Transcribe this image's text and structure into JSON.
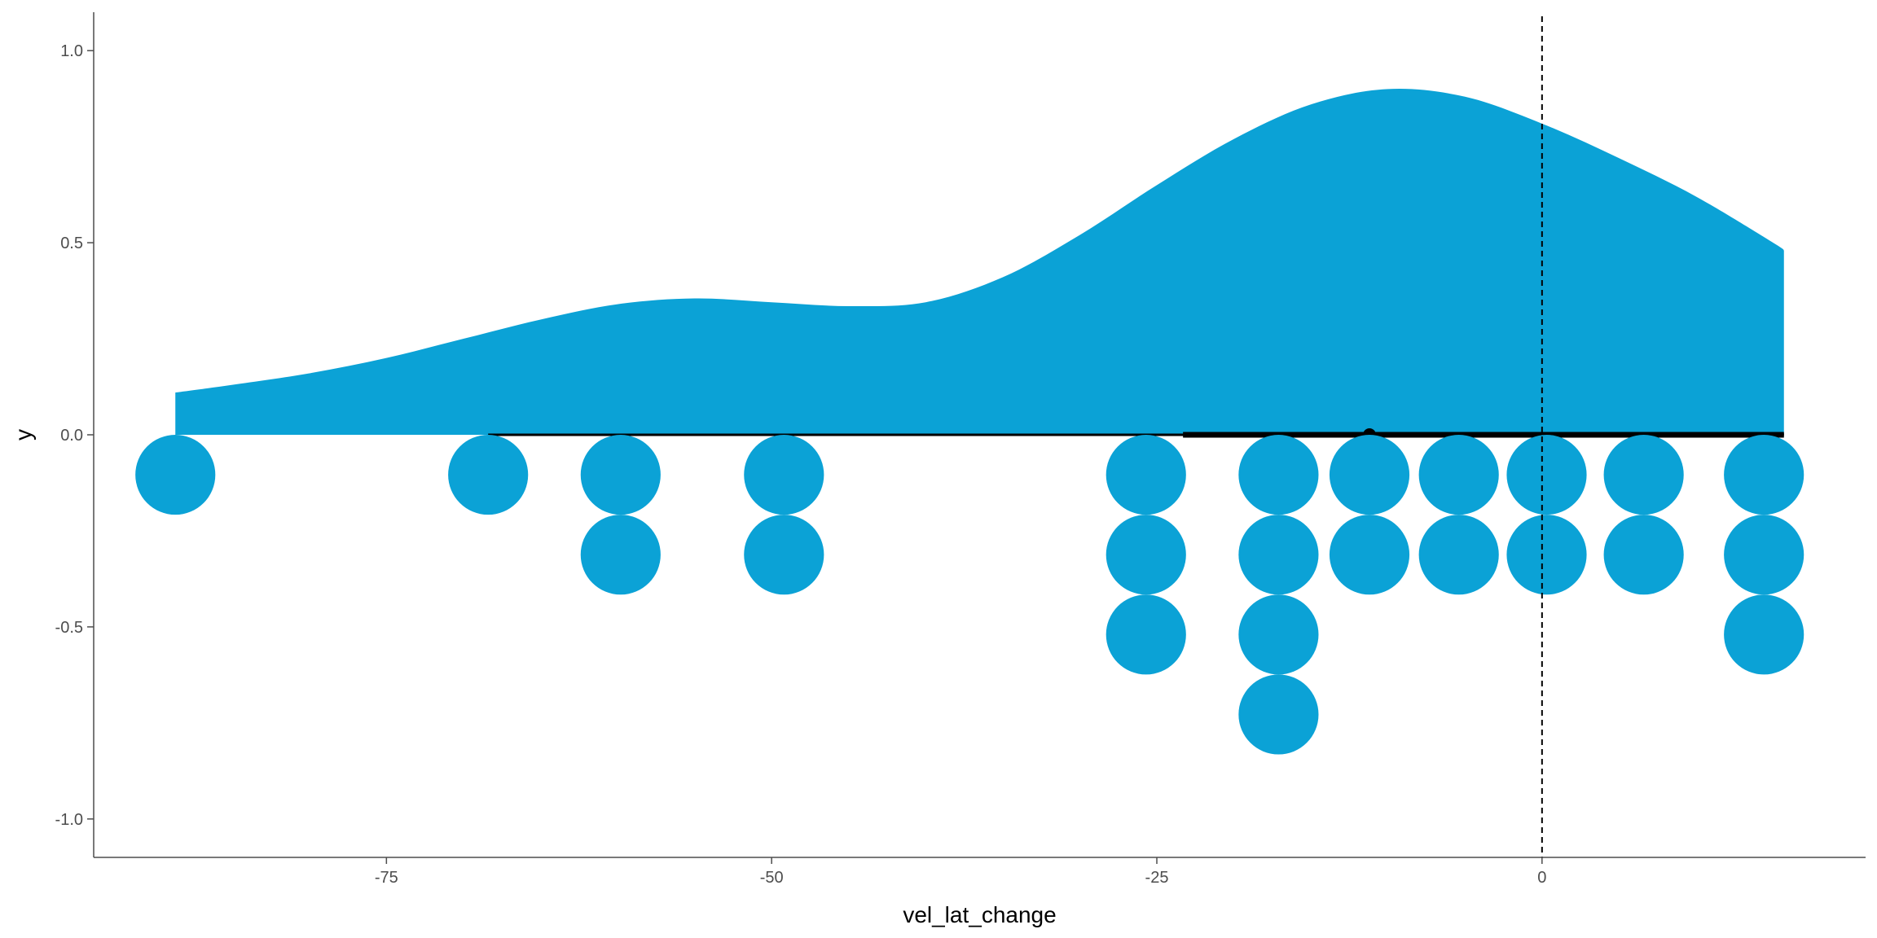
{
  "chart_data": {
    "type": "scatter",
    "xlabel": "vel_lat_change",
    "ylabel": "y",
    "xlim": [
      -94,
      21
    ],
    "ylim": [
      -1.1,
      1.1
    ],
    "x_ticks": [
      -75,
      -50,
      -25,
      0
    ],
    "x_tick_labels": [
      "-75",
      "-50",
      "-25",
      "0"
    ],
    "y_ticks": [
      1.0,
      0.5,
      0.0,
      -0.5,
      -1.0
    ],
    "y_tick_labels": [
      "1.0",
      "0.5",
      "0.0",
      "-0.5",
      "-1.0"
    ],
    "grid": false,
    "reference_line": {
      "x": 0,
      "style": "dashed"
    },
    "density": {
      "x": [
        -88.7,
        -85,
        -80,
        -75,
        -70,
        -65,
        -60,
        -55,
        -50,
        -45,
        -40,
        -35,
        -30,
        -25,
        -20,
        -15,
        -10,
        -5,
        0,
        5,
        10,
        15,
        15.7
      ],
      "y": [
        0.11,
        0.13,
        0.16,
        0.2,
        0.25,
        0.3,
        0.34,
        0.355,
        0.345,
        0.335,
        0.345,
        0.41,
        0.52,
        0.65,
        0.77,
        0.86,
        0.9,
        0.88,
        0.81,
        0.72,
        0.62,
        0.5,
        0.48
      ]
    },
    "interval": {
      "point": -11.2,
      "thick": [
        -23.3,
        15.7
      ],
      "thin": [
        -68.4,
        15.7
      ]
    },
    "dots": {
      "dot_radius": 0.104,
      "columns": [
        {
          "x": -88.7,
          "count": 1
        },
        {
          "x": -68.4,
          "count": 1
        },
        {
          "x": -59.8,
          "count": 2
        },
        {
          "x": -49.2,
          "count": 2
        },
        {
          "x": -25.7,
          "count": 3
        },
        {
          "x": -17.1,
          "count": 4
        },
        {
          "x": -11.2,
          "count": 2
        },
        {
          "x": -5.4,
          "count": 2
        },
        {
          "x": 0.3,
          "count": 2
        },
        {
          "x": 6.6,
          "count": 2
        },
        {
          "x": 14.4,
          "count": 3
        }
      ]
    },
    "colors": {
      "fill": "#0ba2d6",
      "interval": "#000000",
      "axis": "#4d4d4d"
    }
  }
}
